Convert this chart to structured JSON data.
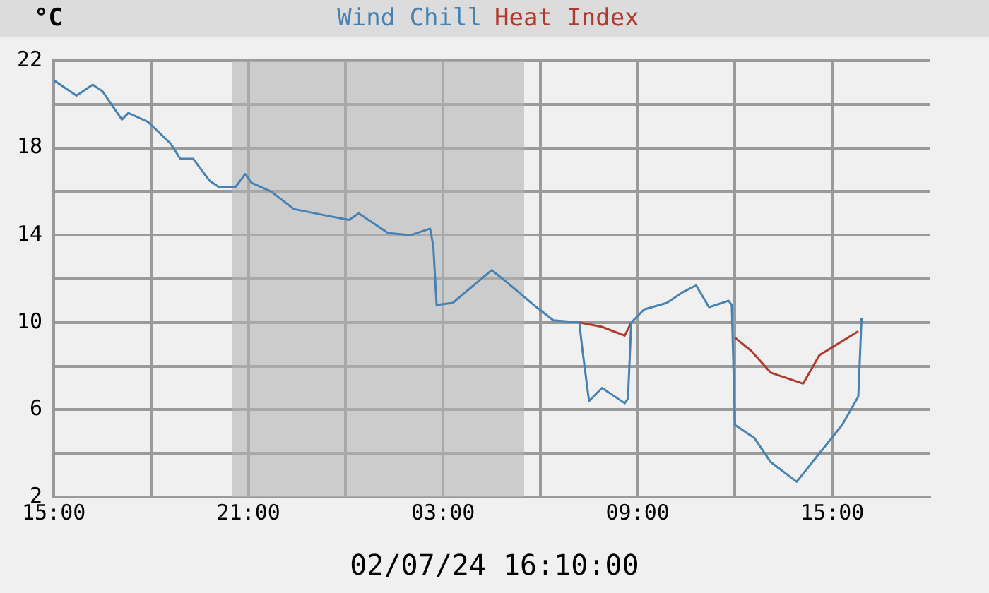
{
  "chart_data": {
    "type": "line",
    "ylabel": "°C",
    "legend": "top",
    "xlim": [
      "--07-01T15:00",
      "--07-02T18:00"
    ],
    "ylim": [
      2,
      22
    ],
    "xticks": [
      {
        "value": "--07-01T15:00",
        "label": "15:00"
      },
      {
        "value": "--07-01T18:00",
        "label": null
      },
      {
        "value": "--07-01T21:00",
        "label": "21:00"
      },
      {
        "value": "--07-02T00:00",
        "label": null
      },
      {
        "value": "--07-02T03:00",
        "label": "03:00"
      },
      {
        "value": "--07-02T06:00",
        "label": null
      },
      {
        "value": "--07-02T09:00",
        "label": "09:00"
      },
      {
        "value": "--07-02T12:00",
        "label": null
      },
      {
        "value": "--07-02T15:00",
        "label": "15:00"
      }
    ],
    "yticks": [
      2,
      {
        "value": 4,
        "label": null
      },
      6,
      {
        "value": 8,
        "label": null
      },
      10,
      {
        "value": 12,
        "label": null
      },
      14,
      {
        "value": 16,
        "label": null
      },
      18,
      {
        "value": 20,
        "label": null
      },
      22
    ],
    "grid": true,
    "bands": [
      {
        "axis": "x",
        "from": "--07-01T20:30",
        "to": "--07-02T05:30",
        "color": "#b4b4b4"
      }
    ],
    "annotations": [
      "02/07/24 16:10:00"
    ],
    "series": [
      {
        "name": "Wind Chill",
        "color": "#4682b4",
        "x": [
          "--07-01T15:00",
          "--07-01T15:42",
          "--07-01T16:12",
          "--07-01T16:30",
          "--07-01T17:06",
          "--07-01T17:18",
          "--07-01T17:54",
          "--07-01T18:36",
          "--07-01T18:54",
          "--07-01T19:18",
          "--07-01T19:48",
          "--07-01T20:06",
          "--07-01T20:36",
          "--07-01T20:54",
          "--07-01T21:06",
          "--07-01T21:42",
          "--07-01T22:24",
          "--07-01T23:24",
          "--07-02T00:06",
          "--07-02T00:24",
          "--07-02T01:18",
          "--07-02T02:00",
          "--07-02T02:36",
          "--07-02T02:42",
          "--07-02T02:48",
          "--07-02T03:18",
          "--07-02T04:30",
          "--07-02T05:00",
          "--07-02T05:48",
          "--07-02T06:24",
          "--07-02T07:12",
          "--07-02T07:18",
          "--07-02T07:30",
          "--07-02T07:54",
          "--07-02T08:36",
          "--07-02T08:42",
          "--07-02T08:48",
          "--07-02T09:12",
          "--07-02T09:54",
          "--07-02T10:24",
          "--07-02T10:48",
          "--07-02T11:12",
          "--07-02T11:48",
          "--07-02T11:54",
          "--07-02T12:00",
          "--07-02T12:36",
          "--07-02T13:06",
          "--07-02T13:54",
          "--07-02T14:36",
          "--07-02T15:18",
          "--07-02T15:48",
          "--07-02T15:54"
        ],
        "values": [
          21.1,
          20.4,
          20.9,
          20.6,
          19.3,
          19.6,
          19.2,
          18.2,
          17.5,
          17.5,
          16.5,
          16.2,
          16.2,
          16.8,
          16.4,
          16.0,
          15.2,
          14.9,
          14.7,
          15.0,
          14.1,
          14.0,
          14.3,
          13.5,
          10.8,
          10.9,
          12.4,
          11.8,
          10.8,
          10.1,
          10.0,
          8.7,
          6.4,
          7.0,
          6.3,
          6.5,
          10.0,
          10.6,
          10.9,
          11.4,
          11.7,
          10.7,
          11.0,
          10.8,
          5.3,
          4.7,
          3.6,
          2.7,
          4.0,
          5.3,
          6.6,
          10.2
        ]
      },
      {
        "name": "Heat Index",
        "color": "#b03a2e",
        "x": [
          "--07-02T07:12",
          "--07-02T07:54",
          "--07-02T08:36",
          "--07-02T08:48",
          "--07-02T10:24",
          "--07-02T12:00",
          "--07-02T12:30",
          "--07-02T13:06",
          "--07-02T14:06",
          "--07-02T14:36",
          "--07-02T15:48"
        ],
        "values": [
          10.0,
          9.8,
          9.4,
          10.0,
          null,
          9.3,
          8.7,
          7.7,
          7.2,
          8.5,
          9.6
        ]
      }
    ]
  }
}
